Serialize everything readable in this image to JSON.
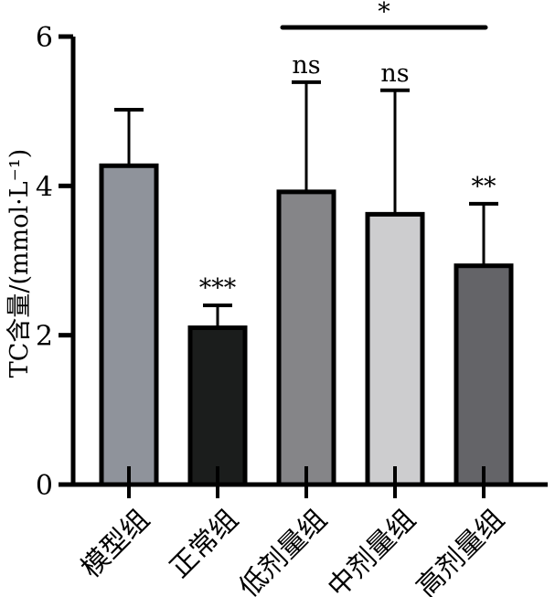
{
  "chart_data": {
    "type": "bar",
    "title": "",
    "xlabel": "",
    "ylabel": "TC含量/(mmol·L⁻¹)",
    "ylim": [
      0,
      6
    ],
    "yticks": [
      "0",
      "2",
      "4",
      "6"
    ],
    "grid": false,
    "categories": [
      "模型组",
      "正常组",
      "低剂量组",
      "中剂量组",
      "高剂量组"
    ],
    "values": [
      4.27,
      2.1,
      3.92,
      3.62,
      2.93
    ],
    "errors": [
      0.75,
      0.3,
      1.47,
      1.66,
      0.83
    ],
    "bar_colors": [
      "#8f939b",
      "#1b1d1c",
      "#858588",
      "#cdcdcf",
      "#646468"
    ],
    "annotations": [
      "",
      "***",
      "ns",
      "ns",
      "**"
    ],
    "bracket": {
      "from": 2,
      "to": 4,
      "label": "*"
    }
  }
}
